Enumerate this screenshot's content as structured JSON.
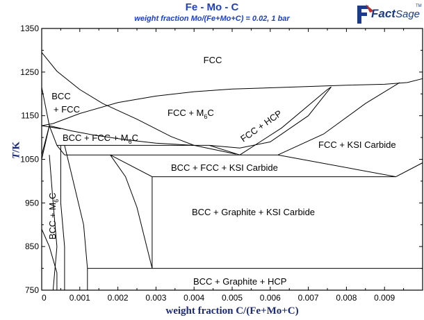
{
  "header": {
    "title": "Fe - Mo - C",
    "subtitle": "weight fraction Mo/(Fe+Mo+C) = 0.02, 1 bar"
  },
  "logo": {
    "text_main": "Fact",
    "text_sage": "Sage",
    "tm": "TM"
  },
  "axes": {
    "y_label_italic": "T",
    "y_label_rest": "/K",
    "x_label": "weight fraction C/(Fe+Mo+C)",
    "x_ticks": [
      "0",
      "0.001",
      "0.002",
      "0.003",
      "0.004",
      "0.005",
      "0.006",
      "0.007",
      "0.008",
      "0.009"
    ],
    "y_ticks": [
      "750",
      "850",
      "950",
      "1050",
      "1150",
      "1250",
      "1350"
    ]
  },
  "regions": {
    "fcc": "FCC",
    "bcc_fcc_1": "BCC",
    "bcc_fcc_2": "+ FCC",
    "fcc_m6c": "FCC + M",
    "fcc_m6c_sub": "6",
    "fcc_m6c_end": "C",
    "fcc_hcp": "FCC + HCP",
    "fcc_ksi": "FCC + KSI Carbide",
    "bcc_fcc_m6c": "BCC + FCC + M",
    "bcc_fcc_m6c_sub": "6",
    "bcc_fcc_m6c_end": "C",
    "bcc_fcc_ksi": "BCC + FCC + KSI Carbide",
    "bcc_gr_ksi": "BCC + Graphite + KSI Carbide",
    "bcc_gr_hcp": "BCC + Graphite + HCP",
    "bcc_m6c": "BCC + M",
    "bcc_m6c_sub": "6",
    "bcc_m6c_end": "C"
  },
  "chart_data": {
    "type": "phase-diagram",
    "x_axis": {
      "label": "weight fraction C/(Fe+Mo+C)",
      "range": [
        0,
        0.01
      ]
    },
    "y_axis": {
      "label": "T/K",
      "range": [
        750,
        1350
      ]
    },
    "lines": [
      [
        [
          0.0,
          1295
        ],
        [
          0.0004,
          1252
        ],
        [
          0.001,
          1210
        ],
        [
          0.0016,
          1178
        ],
        [
          0.0025,
          1142
        ],
        [
          0.0034,
          1102
        ],
        [
          0.004,
          1082
        ]
      ],
      [
        [
          0.0,
          1127
        ],
        [
          0.0003,
          1132
        ],
        [
          0.001,
          1155
        ],
        [
          0.002,
          1180
        ],
        [
          0.003,
          1195
        ],
        [
          0.004,
          1205
        ],
        [
          0.005,
          1211
        ],
        [
          0.006,
          1214
        ],
        [
          0.007,
          1217
        ],
        [
          0.008,
          1220
        ],
        [
          0.009,
          1222
        ],
        [
          0.0096,
          1226
        ],
        [
          0.01,
          1235
        ]
      ],
      [
        [
          0.0002,
          1127
        ],
        [
          0.0008,
          1115
        ],
        [
          0.0014,
          1105
        ],
        [
          0.0022,
          1095
        ],
        [
          0.003,
          1087
        ],
        [
          0.004,
          1082
        ]
      ],
      [
        [
          0.0,
          1050
        ],
        [
          0.0002,
          1127
        ]
      ],
      [
        [
          0.0,
          1127
        ],
        [
          0.0005,
          1120
        ]
      ],
      [
        [
          0.0,
          1215
        ],
        [
          0.0002,
          1127
        ]
      ],
      [
        [
          0.0,
          1060
        ],
        [
          0.0002,
          1127
        ]
      ],
      [
        [
          0.0004,
          1082
        ],
        [
          0.0044,
          1082
        ]
      ],
      [
        [
          0.0004,
          1082
        ],
        [
          0.0002,
          1127
        ]
      ],
      [
        [
          0.0044,
          1082
        ],
        [
          0.0052,
          1060
        ]
      ],
      [
        [
          0.004,
          1082
        ],
        [
          0.0051,
          1062
        ]
      ],
      [
        [
          0.0052,
          1060
        ],
        [
          0.0063,
          1122
        ],
        [
          0.0075,
          1210
        ],
        [
          0.0076,
          1216
        ]
      ],
      [
        [
          0.0044,
          1082
        ],
        [
          0.0052,
          1076
        ],
        [
          0.006,
          1090
        ],
        [
          0.007,
          1150
        ],
        [
          0.0076,
          1216
        ]
      ],
      [
        [
          0.0062,
          1060
        ],
        [
          0.0074,
          1108
        ],
        [
          0.0085,
          1178
        ],
        [
          0.0094,
          1226
        ]
      ],
      [
        [
          0.0006,
          1060
        ],
        [
          0.0062,
          1060
        ]
      ],
      [
        [
          0.0006,
          1060
        ],
        [
          0.0004,
          1082
        ]
      ],
      [
        [
          0.0018,
          1060
        ],
        [
          0.0029,
          1010
        ]
      ],
      [
        [
          0.0029,
          1010
        ],
        [
          0.0093,
          1010
        ]
      ],
      [
        [
          0.0062,
          1060
        ],
        [
          0.0093,
          1010
        ]
      ],
      [
        [
          0.0093,
          1010
        ],
        [
          0.01,
          1042
        ]
      ],
      [
        [
          0.0029,
          1010
        ],
        [
          0.0029,
          800
        ]
      ],
      [
        [
          0.0012,
          800
        ],
        [
          0.01,
          800
        ]
      ],
      [
        [
          0.0018,
          1060
        ],
        [
          0.0022,
          1010
        ],
        [
          0.0025,
          940
        ],
        [
          0.0029,
          800
        ]
      ],
      [
        [
          0.0006,
          1082
        ],
        [
          0.0008,
          1010
        ],
        [
          0.0011,
          900
        ],
        [
          0.0012,
          800
        ],
        [
          0.0012,
          750
        ]
      ],
      [
        [
          0.0005,
          1082
        ],
        [
          0.0005,
          950
        ],
        [
          0.0006,
          850
        ],
        [
          0.0006,
          750
        ]
      ],
      [
        [
          0.0002,
          1060
        ],
        [
          0.0003,
          950
        ],
        [
          0.0004,
          850
        ],
        [
          0.0003,
          750
        ]
      ],
      [
        [
          0.0,
          890
        ],
        [
          0.0002,
          850
        ],
        [
          0.0004,
          790
        ],
        [
          0.0004,
          750
        ]
      ]
    ]
  },
  "colors": {
    "title": "#1a3fc8",
    "axis_label": "#1a2a80",
    "line": "#000000"
  }
}
